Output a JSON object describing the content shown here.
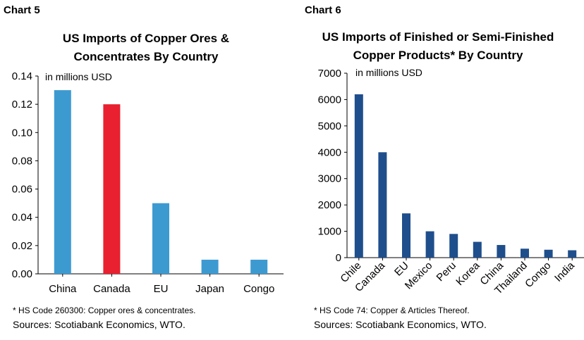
{
  "chart_data": [
    {
      "type": "bar",
      "label": "Chart 5",
      "title": "US Imports of Copper Ores & Concentrates  By Country",
      "title_lines": [
        "US Imports of Copper Ores &",
        "Concentrates  By Country"
      ],
      "unit_label": "in millions USD",
      "categories": [
        "China",
        "Canada",
        "EU",
        "Japan",
        "Congo"
      ],
      "values": [
        0.13,
        0.12,
        0.05,
        0.01,
        0.01
      ],
      "bar_colors": [
        "#3d9ad1",
        "#e8202f",
        "#3d9ad1",
        "#3d9ad1",
        "#3d9ad1"
      ],
      "ylim": [
        0,
        0.14
      ],
      "yticks": [
        "0.00",
        "0.02",
        "0.04",
        "0.06",
        "0.08",
        "0.10",
        "0.12",
        "0.14"
      ],
      "grid": false,
      "note": "* HS Code 260300: Copper ores & concentrates.",
      "source": "Sources: Scotiabank Economics, WTO."
    },
    {
      "type": "bar",
      "label": "Chart 6",
      "title": "US Imports of Finished or Semi-Finished Copper Products* By Country",
      "title_lines": [
        "US Imports of Finished or Semi-Finished",
        "Copper Products* By Country"
      ],
      "unit_label": "in millions USD",
      "categories": [
        "Chile",
        "Canada",
        "EU",
        "Mexico",
        "Peru",
        "Korea",
        "China",
        "Thailand",
        "Congo",
        "India"
      ],
      "values": [
        6200,
        4000,
        1680,
        1000,
        900,
        600,
        480,
        340,
        300,
        280
      ],
      "bar_colors": [
        "#1f4e8c",
        "#1f4e8c",
        "#1f4e8c",
        "#1f4e8c",
        "#1f4e8c",
        "#1f4e8c",
        "#1f4e8c",
        "#1f4e8c",
        "#1f4e8c",
        "#1f4e8c"
      ],
      "ylim": [
        0,
        7000
      ],
      "yticks": [
        "0",
        "1000",
        "2000",
        "3000",
        "4000",
        "5000",
        "6000",
        "7000"
      ],
      "grid": false,
      "note": "* HS Code 74: Copper & Articles Thereof.",
      "source": "Sources: Scotiabank Economics, WTO."
    }
  ]
}
